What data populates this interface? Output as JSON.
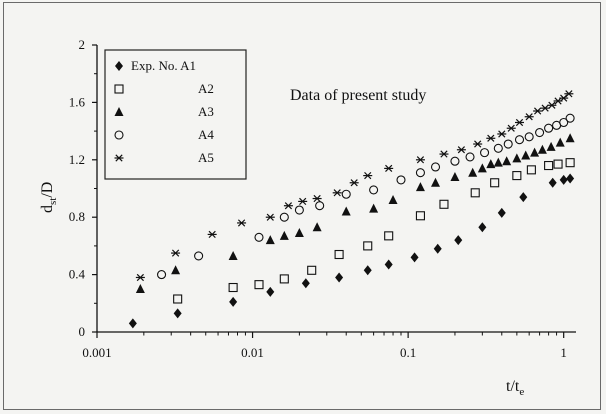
{
  "chart_data": {
    "type": "scatter",
    "x_scale": "log",
    "xlim": [
      0.001,
      1.2
    ],
    "ylim": [
      0,
      2
    ],
    "xlabel_main": "t/t",
    "xlabel_sub": "e",
    "ylabel_main": "d",
    "ylabel_sub": "st",
    "ylabel_tail": "/D",
    "annotation": "Data of present study",
    "x_ticks": [
      {
        "value": 0.001,
        "label": "0.001"
      },
      {
        "value": 0.01,
        "label": "0.01"
      },
      {
        "value": 0.1,
        "label": "0.1"
      },
      {
        "value": 1,
        "label": "1"
      }
    ],
    "y_ticks": [
      {
        "value": 0,
        "label": "0"
      },
      {
        "value": 0.4,
        "label": "0.4"
      },
      {
        "value": 0.8,
        "label": "0.8"
      },
      {
        "value": 1.2,
        "label": "1.2"
      },
      {
        "value": 1.6,
        "label": "1.6"
      },
      {
        "value": 2,
        "label": "2"
      }
    ],
    "legend_position": "top-left",
    "series": [
      {
        "name": "Exp. No. A1",
        "marker": "diamond",
        "x": [
          0.0017,
          0.0033,
          0.0075,
          0.013,
          0.022,
          0.036,
          0.055,
          0.075,
          0.11,
          0.155,
          0.21,
          0.3,
          0.4,
          0.55,
          0.85,
          1.0,
          1.1
        ],
        "y": [
          0.06,
          0.13,
          0.21,
          0.28,
          0.34,
          0.38,
          0.43,
          0.47,
          0.52,
          0.58,
          0.64,
          0.73,
          0.83,
          0.94,
          1.04,
          1.06,
          1.07
        ]
      },
      {
        "name": "A2",
        "marker": "square",
        "x": [
          0.0033,
          0.0075,
          0.011,
          0.016,
          0.024,
          0.036,
          0.055,
          0.075,
          0.12,
          0.17,
          0.27,
          0.36,
          0.5,
          0.62,
          0.8,
          0.92,
          1.1
        ],
        "y": [
          0.23,
          0.31,
          0.33,
          0.37,
          0.43,
          0.54,
          0.6,
          0.67,
          0.81,
          0.89,
          0.97,
          1.04,
          1.09,
          1.13,
          1.16,
          1.17,
          1.18
        ]
      },
      {
        "name": "A3",
        "marker": "triangle",
        "x": [
          0.0019,
          0.0032,
          0.0075,
          0.013,
          0.016,
          0.02,
          0.026,
          0.04,
          0.06,
          0.08,
          0.12,
          0.15,
          0.2,
          0.26,
          0.3,
          0.34,
          0.38,
          0.43,
          0.5,
          0.57,
          0.65,
          0.73,
          0.83,
          0.95,
          1.1
        ],
        "y": [
          0.3,
          0.43,
          0.53,
          0.64,
          0.67,
          0.69,
          0.73,
          0.84,
          0.86,
          0.92,
          1.01,
          1.04,
          1.08,
          1.11,
          1.14,
          1.17,
          1.18,
          1.19,
          1.21,
          1.23,
          1.25,
          1.27,
          1.29,
          1.32,
          1.35
        ]
      },
      {
        "name": "A4",
        "marker": "circle",
        "x": [
          0.0026,
          0.0045,
          0.011,
          0.016,
          0.02,
          0.027,
          0.04,
          0.06,
          0.09,
          0.12,
          0.15,
          0.2,
          0.25,
          0.31,
          0.38,
          0.44,
          0.52,
          0.6,
          0.7,
          0.8,
          0.9,
          1.0,
          1.1
        ],
        "y": [
          0.4,
          0.53,
          0.66,
          0.8,
          0.85,
          0.88,
          0.96,
          0.99,
          1.06,
          1.11,
          1.15,
          1.19,
          1.22,
          1.25,
          1.28,
          1.31,
          1.34,
          1.36,
          1.39,
          1.42,
          1.44,
          1.46,
          1.49
        ]
      },
      {
        "name": "A5",
        "marker": "star",
        "x": [
          0.0019,
          0.0032,
          0.0055,
          0.0085,
          0.013,
          0.017,
          0.021,
          0.026,
          0.035,
          0.045,
          0.055,
          0.075,
          0.12,
          0.17,
          0.22,
          0.28,
          0.34,
          0.4,
          0.46,
          0.52,
          0.6,
          0.68,
          0.76,
          0.84,
          0.92,
          1.0,
          1.08
        ],
        "y": [
          0.38,
          0.55,
          0.68,
          0.76,
          0.8,
          0.88,
          0.91,
          0.93,
          0.97,
          1.04,
          1.09,
          1.14,
          1.2,
          1.24,
          1.27,
          1.31,
          1.35,
          1.38,
          1.42,
          1.46,
          1.5,
          1.54,
          1.56,
          1.58,
          1.61,
          1.63,
          1.66
        ]
      }
    ]
  }
}
